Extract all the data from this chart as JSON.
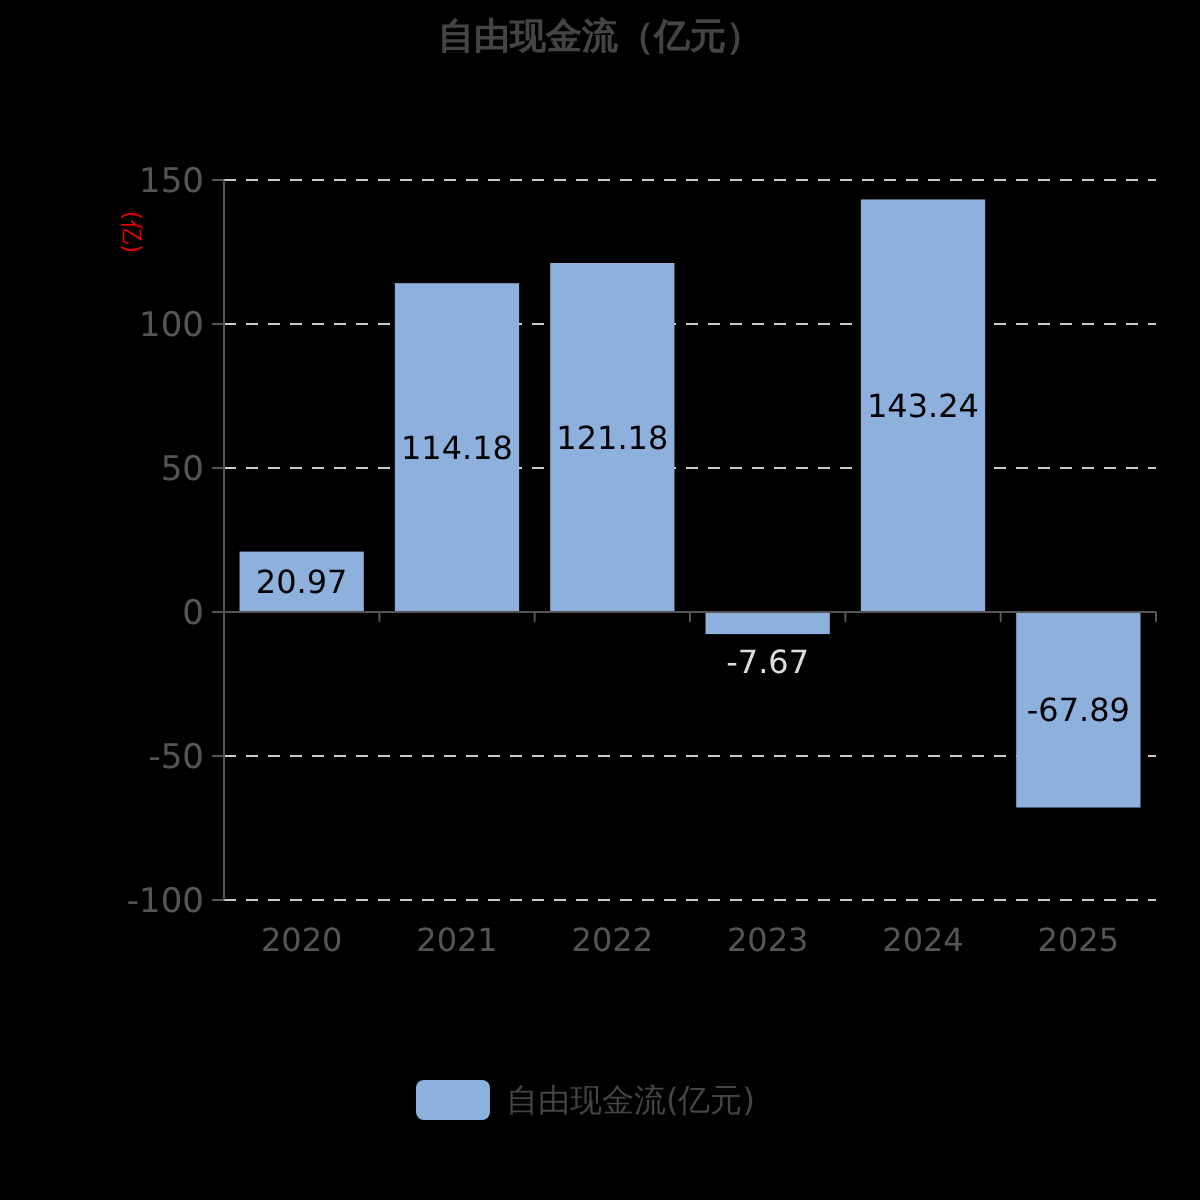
{
  "chart_data": {
    "type": "bar",
    "title": "自由现金流（亿元）",
    "ylabel": "(亿)",
    "categories": [
      "2020",
      "2021",
      "2022",
      "2023",
      "2024",
      "2025"
    ],
    "series": [
      {
        "name": "自由现金流(亿元)",
        "color": "#8eb0dc",
        "values": [
          20.97,
          114.18,
          121.18,
          -7.67,
          143.24,
          -67.89
        ]
      }
    ],
    "ylim": [
      -100,
      150
    ],
    "yticks": [
      -100,
      -50,
      0,
      50,
      100,
      150
    ],
    "grid": "y",
    "legend": "bottom",
    "data_labels": true
  }
}
